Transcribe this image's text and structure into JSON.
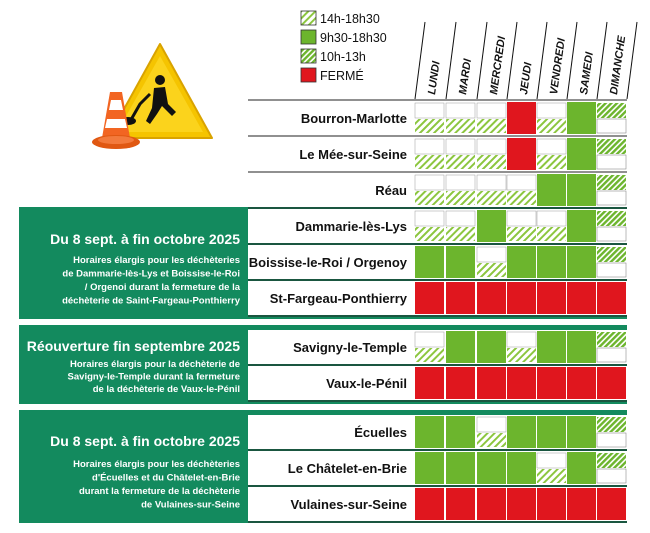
{
  "legend": [
    {
      "label": "14h-18h30",
      "pattern": "stripe-light"
    },
    {
      "label": "9h30-18h30",
      "pattern": "solid-green"
    },
    {
      "label": "10h-13h",
      "pattern": "stripe-dense"
    },
    {
      "label": "FERMÉ",
      "pattern": "solid-red"
    }
  ],
  "days": [
    "LUNDI",
    "MARDI",
    "MERCREDI",
    "JEUDI",
    "VENDREDI",
    "SAMEDI",
    "DIMANCHE"
  ],
  "colors": {
    "green": "#6cb52d",
    "red": "#e0161e",
    "teal": "#138a5e",
    "stripe_bg": "#ffffff"
  },
  "code_key": {
    "G": "9h30-18h30",
    "R": "FERMÉ",
    "S": "14h-18h30",
    "H": "10h-13h"
  },
  "rows": [
    {
      "town": "Bourron-Marlotte",
      "cells": [
        "S",
        "S",
        "S",
        "R",
        "S",
        "G",
        "H"
      ]
    },
    {
      "town": "Le Mée-sur-Seine",
      "cells": [
        "S",
        "S",
        "S",
        "R",
        "S",
        "G",
        "H"
      ]
    },
    {
      "town": "Réau",
      "cells": [
        "S",
        "S",
        "S",
        "S",
        "G",
        "G",
        "H"
      ]
    },
    {
      "town": "Dammarie-lès-Lys",
      "cells": [
        "S",
        "S",
        "G",
        "S",
        "S",
        "G",
        "H"
      ]
    },
    {
      "town": "Boissise-le-Roi / Orgenoy",
      "cells": [
        "G",
        "G",
        "S",
        "G",
        "G",
        "G",
        "H"
      ]
    },
    {
      "town": "St-Fargeau-Ponthierry",
      "cells": [
        "R",
        "R",
        "R",
        "R",
        "R",
        "R",
        "R"
      ]
    },
    {
      "town": "Savigny-le-Temple",
      "cells": [
        "S",
        "G",
        "G",
        "S",
        "G",
        "G",
        "H"
      ]
    },
    {
      "town": "Vaux-le-Pénil",
      "cells": [
        "R",
        "R",
        "R",
        "R",
        "R",
        "R",
        "R"
      ]
    },
    {
      "town": "Écuelles",
      "cells": [
        "G",
        "G",
        "S",
        "G",
        "G",
        "G",
        "H"
      ]
    },
    {
      "town": "Le Châtelet-en-Brie",
      "cells": [
        "G",
        "G",
        "G",
        "G",
        "S",
        "G",
        "H"
      ]
    },
    {
      "town": "Vulaines-sur-Seine",
      "cells": [
        "R",
        "R",
        "R",
        "R",
        "R",
        "R",
        "R"
      ]
    }
  ],
  "banners": [
    {
      "title": "Du 8 sept. à fin octobre 2025",
      "lines": [
        "Horaires élargis pour les déchèteries",
        "de Dammarie-lès-Lys et Boissise-le-Roi",
        "/ Orgenoi durant la fermeture de la",
        "déchèterie de Saint-Fargeau-Ponthierry"
      ]
    },
    {
      "title": "Réouverture fin septembre 2025",
      "lines": [
        "Horaires élargis pour la déchèterie de",
        "Savigny-le-Temple durant la fermeture",
        "de la déchèterie de Vaux-le-Pénil"
      ]
    },
    {
      "title": "Du 8 sept. à fin octobre 2025",
      "lines": [
        "Horaires élargis pour les déchèteries",
        "d'Écuelles et du Châtelet-en-Brie",
        "durant la fermeture de la déchèterie",
        "de Vulaines-sur-Seine"
      ]
    }
  ],
  "icon": "roadworks-sign-icon"
}
